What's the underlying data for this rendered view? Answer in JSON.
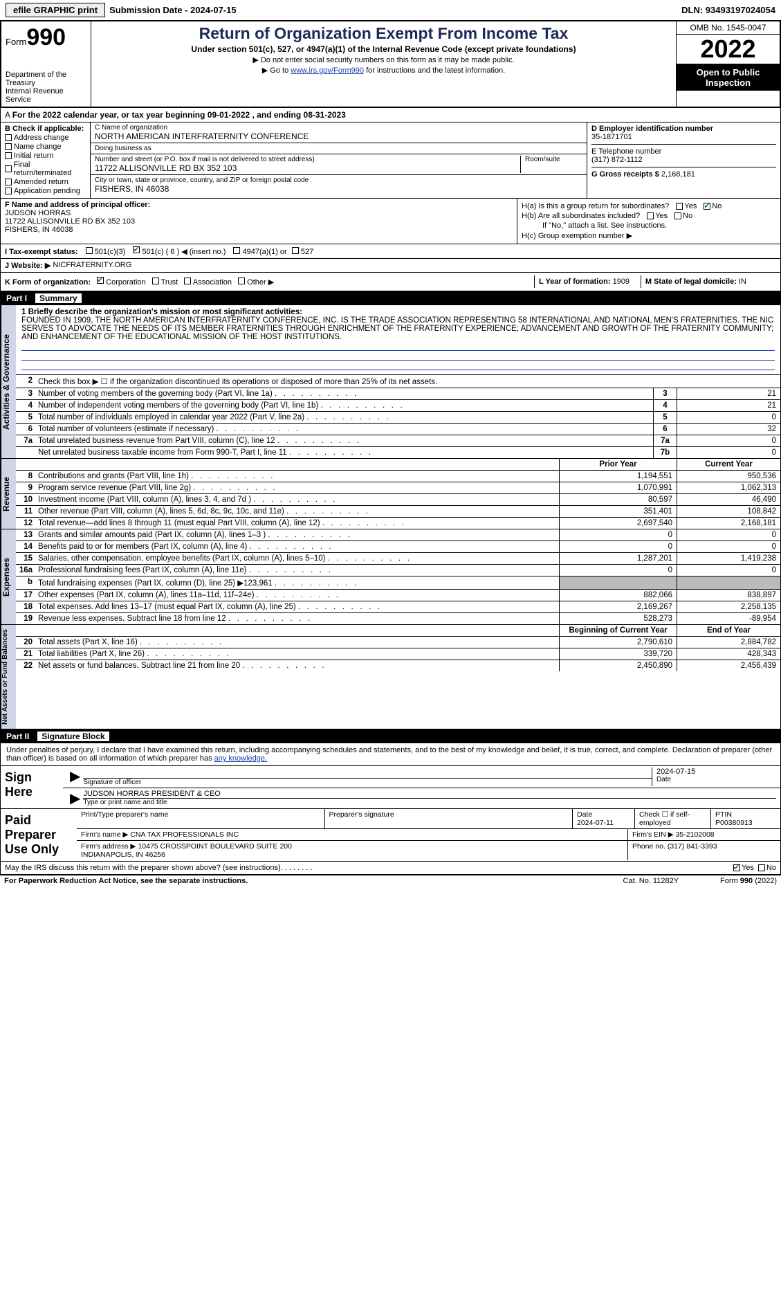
{
  "top": {
    "efile": "efile GRAPHIC print",
    "submission": "Submission Date - 2024-07-15",
    "dln": "DLN: 93493197024054"
  },
  "header": {
    "form_label": "Form",
    "form_num": "990",
    "title": "Return of Organization Exempt From Income Tax",
    "subtitle": "Under section 501(c), 527, or 4947(a)(1) of the Internal Revenue Code (except private foundations)",
    "note1": "▶ Do not enter social security numbers on this form as it may be made public.",
    "note2_pre": "▶ Go to ",
    "note2_link": "www.irs.gov/Form990",
    "note2_post": " for instructions and the latest information.",
    "dept": "Department of the Treasury\nInternal Revenue Service",
    "omb": "OMB No. 1545-0047",
    "year": "2022",
    "open": "Open to Public Inspection"
  },
  "a_line": "For the 2022 calendar year, or tax year beginning 09-01-2022   , and ending 08-31-2023",
  "b": {
    "hdr": "B Check if applicable:",
    "addr": "Address change",
    "name": "Name change",
    "init": "Initial return",
    "final": "Final return/terminated",
    "amend": "Amended return",
    "app": "Application pending"
  },
  "c": {
    "name_lbl": "C Name of organization",
    "name": "NORTH AMERICAN INTERFRATERNITY CONFERENCE",
    "dba_lbl": "Doing business as",
    "street_lbl": "Number and street (or P.O. box if mail is not delivered to street address)",
    "street": "11722 ALLISONVILLE RD BX 352 103",
    "room_lbl": "Room/suite",
    "city_lbl": "City or town, state or province, country, and ZIP or foreign postal code",
    "city": "FISHERS, IN  46038"
  },
  "d": {
    "ein_lbl": "D Employer identification number",
    "ein": "35-1871701",
    "phone_lbl": "E Telephone number",
    "phone": "(317) 872-1112",
    "gross_lbl": "G Gross receipts $",
    "gross": "2,168,181"
  },
  "f": {
    "lbl": "F  Name and address of principal officer:",
    "name": "JUDSON HORRAS",
    "addr": "11722 ALLISONVILLE RD BX 352 103\nFISHERS, IN  46038"
  },
  "h": {
    "ha": "H(a)  Is this a group return for subordinates?",
    "hb": "H(b)  Are all subordinates included?",
    "hb_note": "If \"No,\" attach a list. See instructions.",
    "hc": "H(c)  Group exemption number ▶",
    "yes": "Yes",
    "no": "No"
  },
  "i": {
    "lbl": "I  Tax-exempt status:",
    "opts": [
      "501(c)(3)",
      "501(c) ( 6 ) ◀ (insert no.)",
      "4947(a)(1) or",
      "527"
    ]
  },
  "j": {
    "lbl": "J  Website: ▶",
    "val": "NICFRATERNITY.ORG"
  },
  "k": {
    "lbl": "K Form of organization:",
    "opts": [
      "Corporation",
      "Trust",
      "Association",
      "Other ▶"
    ]
  },
  "l": {
    "lbl": "L Year of formation:",
    "val": "1909"
  },
  "m": {
    "lbl": "M State of legal domicile:",
    "val": "IN"
  },
  "part1": {
    "hdr_num": "Part I",
    "hdr_txt": "Summary",
    "side_activities": "Activities & Governance",
    "briefly_lbl": "1  Briefly describe the organization's mission or most significant activities:",
    "briefly": "FOUNDED IN 1909, THE NORTH AMERICAN INTERFRATERNITY CONFERENCE, INC. IS THE TRADE ASSOCIATION REPRESENTING 58 INTERNATIONAL AND NATIONAL MEN'S FRATERNITIES. THE NIC SERVES TO ADVOCATE THE NEEDS OF ITS MEMBER FRATERNITIES THROUGH ENRICHMENT OF THE FRATERNITY EXPERIENCE; ADVANCEMENT AND GROWTH OF THE FRATERNITY COMMUNITY; AND ENHANCEMENT OF THE EDUCATIONAL MISSION OF THE HOST INSTITUTIONS.",
    "l2": "Check this box ▶ ☐  if the organization discontinued its operations or disposed of more than 25% of its net assets.",
    "rows_ag": [
      {
        "n": "3",
        "d": "Number of voting members of the governing body (Part VI, line 1a)",
        "b": "3",
        "v": "21"
      },
      {
        "n": "4",
        "d": "Number of independent voting members of the governing body (Part VI, line 1b)",
        "b": "4",
        "v": "21"
      },
      {
        "n": "5",
        "d": "Total number of individuals employed in calendar year 2022 (Part V, line 2a)",
        "b": "5",
        "v": "0"
      },
      {
        "n": "6",
        "d": "Total number of volunteers (estimate if necessary)",
        "b": "6",
        "v": "32"
      },
      {
        "n": "7a",
        "d": "Total unrelated business revenue from Part VIII, column (C), line 12",
        "b": "7a",
        "v": "0"
      },
      {
        "n": "",
        "d": "Net unrelated business taxable income from Form 990-T, Part I, line 11",
        "b": "7b",
        "v": "0"
      }
    ],
    "side_revenue": "Revenue",
    "hdr_prior": "Prior Year",
    "hdr_current": "Current Year",
    "rows_rev": [
      {
        "n": "8",
        "d": "Contributions and grants (Part VIII, line 1h)",
        "p": "1,194,551",
        "c": "950,536"
      },
      {
        "n": "9",
        "d": "Program service revenue (Part VIII, line 2g)",
        "p": "1,070,991",
        "c": "1,062,313"
      },
      {
        "n": "10",
        "d": "Investment income (Part VIII, column (A), lines 3, 4, and 7d )",
        "p": "80,597",
        "c": "46,490"
      },
      {
        "n": "11",
        "d": "Other revenue (Part VIII, column (A), lines 5, 6d, 8c, 9c, 10c, and 11e)",
        "p": "351,401",
        "c": "108,842"
      },
      {
        "n": "12",
        "d": "Total revenue—add lines 8 through 11 (must equal Part VIII, column (A), line 12)",
        "p": "2,697,540",
        "c": "2,168,181"
      }
    ],
    "side_expenses": "Expenses",
    "rows_exp": [
      {
        "n": "13",
        "d": "Grants and similar amounts paid (Part IX, column (A), lines 1–3 )",
        "p": "0",
        "c": "0"
      },
      {
        "n": "14",
        "d": "Benefits paid to or for members (Part IX, column (A), line 4)",
        "p": "0",
        "c": "0"
      },
      {
        "n": "15",
        "d": "Salaries, other compensation, employee benefits (Part IX, column (A), lines 5–10)",
        "p": "1,287,201",
        "c": "1,419,238"
      },
      {
        "n": "16a",
        "d": "Professional fundraising fees (Part IX, column (A), line 11e)",
        "p": "0",
        "c": "0"
      },
      {
        "n": "b",
        "d": "Total fundraising expenses (Part IX, column (D), line 25) ▶123,961",
        "p": "",
        "c": "",
        "gray": true
      },
      {
        "n": "17",
        "d": "Other expenses (Part IX, column (A), lines 11a–11d, 11f–24e)",
        "p": "882,066",
        "c": "838,897"
      },
      {
        "n": "18",
        "d": "Total expenses. Add lines 13–17 (must equal Part IX, column (A), line 25)",
        "p": "2,169,267",
        "c": "2,258,135"
      },
      {
        "n": "19",
        "d": "Revenue less expenses. Subtract line 18 from line 12",
        "p": "528,273",
        "c": "-89,954"
      }
    ],
    "side_net": "Net Assets or Fund Balances",
    "hdr_begin": "Beginning of Current Year",
    "hdr_end": "End of Year",
    "rows_net": [
      {
        "n": "20",
        "d": "Total assets (Part X, line 16)",
        "p": "2,790,610",
        "c": "2,884,782"
      },
      {
        "n": "21",
        "d": "Total liabilities (Part X, line 26)",
        "p": "339,720",
        "c": "428,343"
      },
      {
        "n": "22",
        "d": "Net assets or fund balances. Subtract line 21 from line 20",
        "p": "2,450,890",
        "c": "2,456,439"
      }
    ]
  },
  "part2": {
    "hdr_num": "Part II",
    "hdr_txt": "Signature Block",
    "intro": "Under penalties of perjury, I declare that I have examined this return, including accompanying schedules and statements, and to the best of my knowledge and belief, it is true, correct, and complete. Declaration of preparer (other than officer) is based on all information of which preparer has ",
    "intro_uline": "any knowledge.",
    "sign_here": "Sign Here",
    "sig_officer": "Signature of officer",
    "sig_date": "2024-07-15",
    "date_lbl": "Date",
    "sig_name": "JUDSON HORRAS  PRESIDENT & CEO",
    "sig_name_lbl": "Type or print name and title",
    "paid": "Paid Preparer Use Only",
    "prep_name_lbl": "Print/Type preparer's name",
    "prep_sig_lbl": "Preparer's signature",
    "prep_date_lbl": "Date",
    "prep_date": "2024-07-11",
    "prep_chk": "Check ☐ if self-employed",
    "ptin_lbl": "PTIN",
    "ptin": "P00380913",
    "firm_name_lbl": "Firm's name    ▶",
    "firm_name": "CNA TAX PROFESSIONALS INC",
    "firm_ein_lbl": "Firm's EIN ▶",
    "firm_ein": "35-2102008",
    "firm_addr_lbl": "Firm's address ▶",
    "firm_addr": "10475 CROSSPOINT BOULEVARD SUITE 200\nINDIANAPOLIS, IN  46256",
    "firm_phone_lbl": "Phone no.",
    "firm_phone": "(317) 841-3393",
    "discuss": "May the IRS discuss this return with the preparer shown above? (see instructions)"
  },
  "footer": {
    "paperwork": "For Paperwork Reduction Act Notice, see the separate instructions.",
    "cat": "Cat. No. 11282Y",
    "formref": "Form 990 (2022)"
  }
}
